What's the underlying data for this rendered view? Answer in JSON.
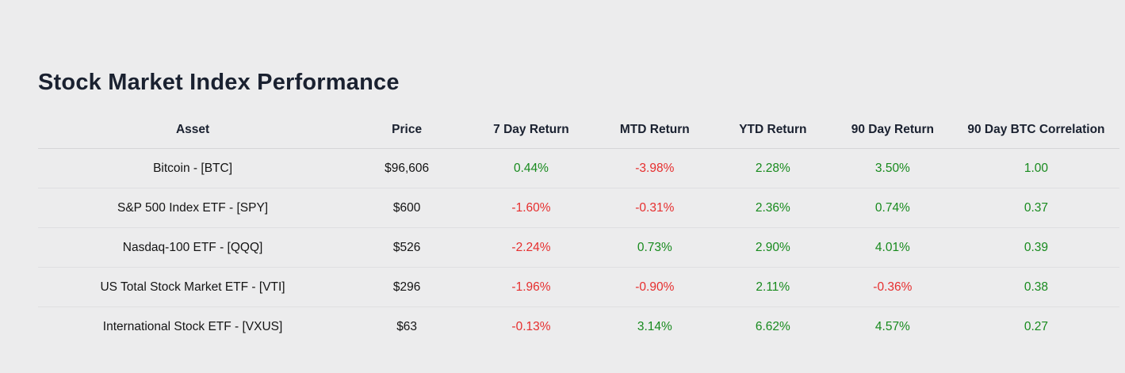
{
  "page": {
    "title": "Stock Market Index Performance"
  },
  "colors": {
    "positive": "#178a1d",
    "negative": "#e62e2e",
    "heading": "#1a2130",
    "background": "#ececed"
  },
  "table": {
    "columns": [
      "Asset",
      "Price",
      "7 Day Return",
      "MTD Return",
      "YTD Return",
      "90 Day Return",
      "90 Day BTC Correlation"
    ],
    "rows": [
      {
        "asset": "Bitcoin - [BTC]",
        "price": "$96,606",
        "d7": "0.44%",
        "mtd": "-3.98%",
        "ytd": "2.28%",
        "d90": "3.50%",
        "corr": "1.00"
      },
      {
        "asset": "S&P 500 Index ETF - [SPY]",
        "price": "$600",
        "d7": "-1.60%",
        "mtd": "-0.31%",
        "ytd": "2.36%",
        "d90": "0.74%",
        "corr": "0.37"
      },
      {
        "asset": "Nasdaq-100 ETF - [QQQ]",
        "price": "$526",
        "d7": "-2.24%",
        "mtd": "0.73%",
        "ytd": "2.90%",
        "d90": "4.01%",
        "corr": "0.39"
      },
      {
        "asset": "US Total Stock Market ETF - [VTI]",
        "price": "$296",
        "d7": "-1.96%",
        "mtd": "-0.90%",
        "ytd": "2.11%",
        "d90": "-0.36%",
        "corr": "0.38"
      },
      {
        "asset": "International Stock ETF - [VXUS]",
        "price": "$63",
        "d7": "-0.13%",
        "mtd": "3.14%",
        "ytd": "6.62%",
        "d90": "4.57%",
        "corr": "0.27"
      }
    ]
  }
}
